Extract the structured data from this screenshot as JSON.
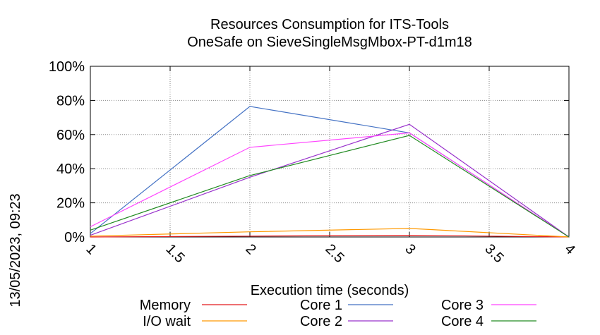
{
  "side_label": "13/05/2023, 09:23",
  "chart_data": {
    "type": "line",
    "title": "Resources Consumption for ITS-Tools",
    "subtitle": "OneSafe on SieveSingleMsgMbox-PT-d1m18",
    "xlabel": "Execution time (seconds)",
    "ylabel": "",
    "xlim": [
      1,
      4
    ],
    "ylim": [
      0,
      100
    ],
    "x_ticks": [
      "1",
      "1.5",
      "2",
      "2.5",
      "3",
      "3.5",
      "4"
    ],
    "y_ticks": [
      "0%",
      "20%",
      "40%",
      "60%",
      "80%",
      "100%"
    ],
    "grid": true,
    "legend_position": "bottom",
    "series": [
      {
        "name": "Memory",
        "color": "#e41a1c",
        "x": [
          1,
          2,
          3,
          4
        ],
        "y": [
          0,
          0.5,
          1,
          0
        ]
      },
      {
        "name": "I/O wait",
        "color": "#ff9900",
        "x": [
          1,
          2,
          3,
          4
        ],
        "y": [
          0.5,
          3,
          5,
          0
        ]
      },
      {
        "name": "Core 1",
        "color": "#4472c4",
        "x": [
          1,
          2,
          3,
          4
        ],
        "y": [
          2,
          76.5,
          61,
          0
        ]
      },
      {
        "name": "Core 2",
        "color": "#9932cc",
        "x": [
          1,
          2,
          3,
          4
        ],
        "y": [
          1,
          35,
          66,
          0
        ]
      },
      {
        "name": "Core 3",
        "color": "#ff44ff",
        "x": [
          1,
          2,
          3,
          4
        ],
        "y": [
          6,
          52.5,
          61,
          0
        ]
      },
      {
        "name": "Core 4",
        "color": "#228b22",
        "x": [
          1,
          2,
          3,
          4
        ],
        "y": [
          4,
          36,
          59.5,
          0
        ]
      }
    ]
  }
}
